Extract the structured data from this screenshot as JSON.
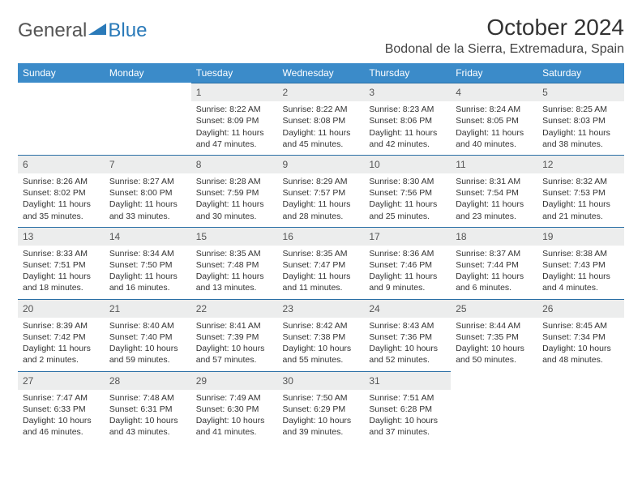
{
  "logo": {
    "word1": "General",
    "word2": "Blue"
  },
  "title": "October 2024",
  "location": "Bodonal de la Sierra, Extremadura, Spain",
  "colors": {
    "header_bg": "#3b8bc9",
    "header_text": "#ffffff",
    "daynum_bg": "#eceded",
    "daynum_border": "#2a6fa5",
    "text": "#333333",
    "logo_gray": "#555555",
    "logo_blue": "#2a7ab9",
    "background": "#ffffff"
  },
  "typography": {
    "title_size_pt": 21,
    "location_size_pt": 12,
    "weekday_size_pt": 9,
    "daynum_size_pt": 9,
    "body_size_pt": 8
  },
  "weekdays": [
    "Sunday",
    "Monday",
    "Tuesday",
    "Wednesday",
    "Thursday",
    "Friday",
    "Saturday"
  ],
  "weeks": [
    [
      null,
      null,
      {
        "n": "1",
        "sunrise": "8:22 AM",
        "sunset": "8:09 PM",
        "daylight": "11 hours and 47 minutes."
      },
      {
        "n": "2",
        "sunrise": "8:22 AM",
        "sunset": "8:08 PM",
        "daylight": "11 hours and 45 minutes."
      },
      {
        "n": "3",
        "sunrise": "8:23 AM",
        "sunset": "8:06 PM",
        "daylight": "11 hours and 42 minutes."
      },
      {
        "n": "4",
        "sunrise": "8:24 AM",
        "sunset": "8:05 PM",
        "daylight": "11 hours and 40 minutes."
      },
      {
        "n": "5",
        "sunrise": "8:25 AM",
        "sunset": "8:03 PM",
        "daylight": "11 hours and 38 minutes."
      }
    ],
    [
      {
        "n": "6",
        "sunrise": "8:26 AM",
        "sunset": "8:02 PM",
        "daylight": "11 hours and 35 minutes."
      },
      {
        "n": "7",
        "sunrise": "8:27 AM",
        "sunset": "8:00 PM",
        "daylight": "11 hours and 33 minutes."
      },
      {
        "n": "8",
        "sunrise": "8:28 AM",
        "sunset": "7:59 PM",
        "daylight": "11 hours and 30 minutes."
      },
      {
        "n": "9",
        "sunrise": "8:29 AM",
        "sunset": "7:57 PM",
        "daylight": "11 hours and 28 minutes."
      },
      {
        "n": "10",
        "sunrise": "8:30 AM",
        "sunset": "7:56 PM",
        "daylight": "11 hours and 25 minutes."
      },
      {
        "n": "11",
        "sunrise": "8:31 AM",
        "sunset": "7:54 PM",
        "daylight": "11 hours and 23 minutes."
      },
      {
        "n": "12",
        "sunrise": "8:32 AM",
        "sunset": "7:53 PM",
        "daylight": "11 hours and 21 minutes."
      }
    ],
    [
      {
        "n": "13",
        "sunrise": "8:33 AM",
        "sunset": "7:51 PM",
        "daylight": "11 hours and 18 minutes."
      },
      {
        "n": "14",
        "sunrise": "8:34 AM",
        "sunset": "7:50 PM",
        "daylight": "11 hours and 16 minutes."
      },
      {
        "n": "15",
        "sunrise": "8:35 AM",
        "sunset": "7:48 PM",
        "daylight": "11 hours and 13 minutes."
      },
      {
        "n": "16",
        "sunrise": "8:35 AM",
        "sunset": "7:47 PM",
        "daylight": "11 hours and 11 minutes."
      },
      {
        "n": "17",
        "sunrise": "8:36 AM",
        "sunset": "7:46 PM",
        "daylight": "11 hours and 9 minutes."
      },
      {
        "n": "18",
        "sunrise": "8:37 AM",
        "sunset": "7:44 PM",
        "daylight": "11 hours and 6 minutes."
      },
      {
        "n": "19",
        "sunrise": "8:38 AM",
        "sunset": "7:43 PM",
        "daylight": "11 hours and 4 minutes."
      }
    ],
    [
      {
        "n": "20",
        "sunrise": "8:39 AM",
        "sunset": "7:42 PM",
        "daylight": "11 hours and 2 minutes."
      },
      {
        "n": "21",
        "sunrise": "8:40 AM",
        "sunset": "7:40 PM",
        "daylight": "10 hours and 59 minutes."
      },
      {
        "n": "22",
        "sunrise": "8:41 AM",
        "sunset": "7:39 PM",
        "daylight": "10 hours and 57 minutes."
      },
      {
        "n": "23",
        "sunrise": "8:42 AM",
        "sunset": "7:38 PM",
        "daylight": "10 hours and 55 minutes."
      },
      {
        "n": "24",
        "sunrise": "8:43 AM",
        "sunset": "7:36 PM",
        "daylight": "10 hours and 52 minutes."
      },
      {
        "n": "25",
        "sunrise": "8:44 AM",
        "sunset": "7:35 PM",
        "daylight": "10 hours and 50 minutes."
      },
      {
        "n": "26",
        "sunrise": "8:45 AM",
        "sunset": "7:34 PM",
        "daylight": "10 hours and 48 minutes."
      }
    ],
    [
      {
        "n": "27",
        "sunrise": "7:47 AM",
        "sunset": "6:33 PM",
        "daylight": "10 hours and 46 minutes."
      },
      {
        "n": "28",
        "sunrise": "7:48 AM",
        "sunset": "6:31 PM",
        "daylight": "10 hours and 43 minutes."
      },
      {
        "n": "29",
        "sunrise": "7:49 AM",
        "sunset": "6:30 PM",
        "daylight": "10 hours and 41 minutes."
      },
      {
        "n": "30",
        "sunrise": "7:50 AM",
        "sunset": "6:29 PM",
        "daylight": "10 hours and 39 minutes."
      },
      {
        "n": "31",
        "sunrise": "7:51 AM",
        "sunset": "6:28 PM",
        "daylight": "10 hours and 37 minutes."
      },
      null,
      null
    ]
  ]
}
